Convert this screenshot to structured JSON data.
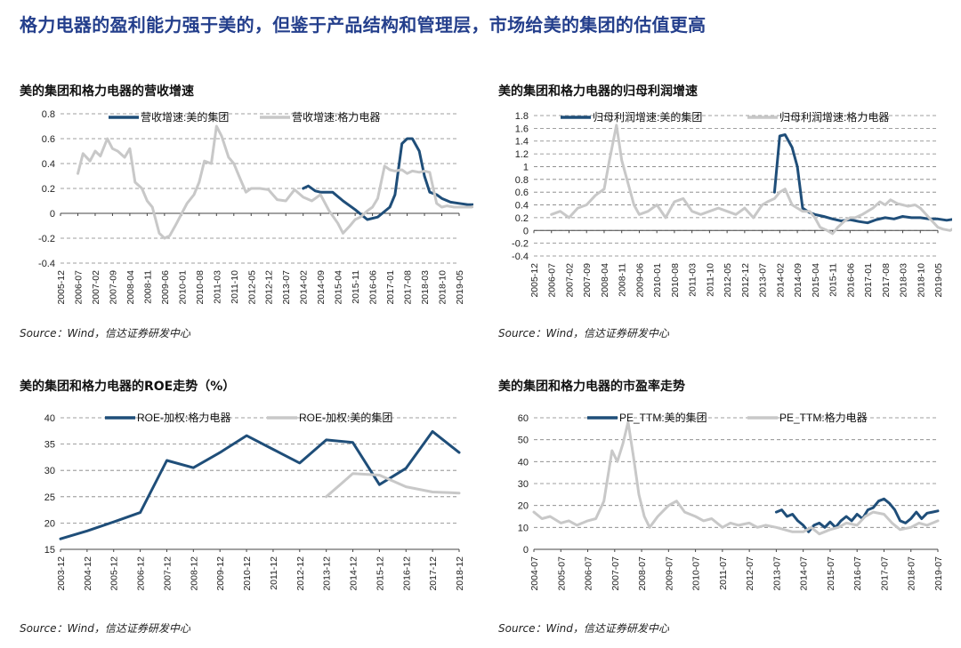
{
  "headline": "格力电器的盈利能力强于美的，但鉴于产品结构和管理层，市场给美的集团的估值更高",
  "colors": {
    "dark": "#1f4e79",
    "light": "#c8c8c8",
    "title": "#243f8c",
    "grid": "#808080"
  },
  "charts": [
    {
      "title": "美的集团和格力电器的营收增速",
      "source": "Source：Wind，信达证券研发中心",
      "chart_data": {
        "type": "line",
        "ylim": [
          -0.4,
          0.8
        ],
        "yticks": [
          -0.4,
          -0.2,
          0,
          0.2,
          0.4,
          0.6,
          0.8
        ],
        "xticks": [
          "2005-12",
          "2006-07",
          "2007-02",
          "2007-09",
          "2008-04",
          "2008-11",
          "2009-06",
          "2010-01",
          "2010-08",
          "2011-03",
          "2011-10",
          "2012-05",
          "2012-12",
          "2013-07",
          "2014-02",
          "2014-09",
          "2015-04",
          "2015-11",
          "2016-06",
          "2017-01",
          "2017-08",
          "2018-03",
          "2018-10",
          "2019-05"
        ],
        "series": [
          {
            "name": "营收增速:美的集团",
            "color": "dark",
            "x": [
              14.0,
              14.3,
              14.7,
              15.0,
              15.7,
              16.3,
              17.0,
              17.7,
              18.3,
              19.0,
              19.3,
              19.7,
              20.0,
              20.3,
              20.7,
              21.0,
              21.3,
              21.7,
              22.0,
              22.5,
              23.0,
              23.5,
              24.0
            ],
            "y": [
              0.2,
              0.22,
              0.18,
              0.17,
              0.17,
              0.1,
              0.03,
              -0.05,
              -0.03,
              0.05,
              0.15,
              0.56,
              0.6,
              0.6,
              0.5,
              0.3,
              0.17,
              0.15,
              0.12,
              0.09,
              0.08,
              0.07,
              0.07
            ]
          },
          {
            "name": "营收增速:格力电器",
            "color": "light",
            "x": [
              1.0,
              1.3,
              1.7,
              2.0,
              2.3,
              2.7,
              3.0,
              3.3,
              3.7,
              4.0,
              4.3,
              4.7,
              5.0,
              5.3,
              5.7,
              6.0,
              6.3,
              6.7,
              7.0,
              7.3,
              7.7,
              8.0,
              8.3,
              8.7,
              9.0,
              9.3,
              9.7,
              10.0,
              10.3,
              10.7,
              11.0,
              11.5,
              12.0,
              12.5,
              13.0,
              13.5,
              14.0,
              14.5,
              15.0,
              15.5,
              16.0,
              16.3,
              16.7,
              17.0,
              17.3,
              17.7,
              18.0,
              18.3,
              18.7,
              19.0,
              19.3,
              19.7,
              20.0,
              20.3,
              20.7,
              21.0,
              21.3,
              21.7,
              22.0,
              22.3,
              22.7,
              23.0,
              23.3,
              23.7,
              24.0
            ],
            "y": [
              0.32,
              0.48,
              0.42,
              0.5,
              0.46,
              0.6,
              0.52,
              0.5,
              0.45,
              0.52,
              0.25,
              0.2,
              0.1,
              0.05,
              -0.16,
              -0.2,
              -0.18,
              -0.08,
              0.0,
              0.08,
              0.15,
              0.25,
              0.42,
              0.4,
              0.7,
              0.62,
              0.45,
              0.4,
              0.3,
              0.17,
              0.2,
              0.2,
              0.19,
              0.11,
              0.1,
              0.19,
              0.13,
              0.1,
              0.15,
              0.02,
              -0.08,
              -0.16,
              -0.1,
              -0.05,
              -0.03,
              0.02,
              0.05,
              0.12,
              0.38,
              0.35,
              0.34,
              0.35,
              0.32,
              0.34,
              0.33,
              0.34,
              0.33,
              0.08,
              0.05,
              0.06,
              0.05,
              0.05,
              0.05,
              0.05,
              0.06
            ]
          }
        ]
      }
    },
    {
      "title": "美的集团和格力电器的归母利润增速",
      "source": "Source：Wind，信达证券研发中心",
      "chart_data": {
        "type": "line",
        "ylim": [
          -0.4,
          1.8
        ],
        "yticks": [
          -0.4,
          -0.2,
          0,
          0.2,
          0.4,
          0.6,
          0.8,
          1,
          1.2,
          1.4,
          1.6,
          1.8
        ],
        "xticks": [
          "2005-12",
          "2006-07",
          "2007-02",
          "2007-09",
          "2008-04",
          "2008-11",
          "2009-06",
          "2010-01",
          "2010-08",
          "2011-03",
          "2011-10",
          "2012-05",
          "2012-12",
          "2013-07",
          "2014-02",
          "2014-09",
          "2015-04",
          "2015-11",
          "2016-06",
          "2017-01",
          "2017-08",
          "2018-03",
          "2018-10",
          "2019-05"
        ],
        "series": [
          {
            "name": "归母利润增速:美的集团",
            "color": "dark",
            "x": [
              13.7,
              14.0,
              14.3,
              14.7,
              15.0,
              15.3,
              15.7,
              16.0,
              16.5,
              17.0,
              17.5,
              18.0,
              18.5,
              19.0,
              19.5,
              20.0,
              20.5,
              21.0,
              21.5,
              22.0,
              22.5,
              23.0,
              23.5,
              24.0
            ],
            "y": [
              0.6,
              1.48,
              1.5,
              1.3,
              1.0,
              0.35,
              0.28,
              0.25,
              0.22,
              0.18,
              0.15,
              0.17,
              0.14,
              0.12,
              0.17,
              0.2,
              0.18,
              0.22,
              0.2,
              0.2,
              0.18,
              0.18,
              0.16,
              0.18
            ]
          },
          {
            "name": "归母利润增速:格力电器",
            "color": "light",
            "x": [
              1.0,
              1.5,
              2.0,
              2.5,
              3.0,
              3.5,
              4.0,
              4.3,
              4.7,
              5.0,
              5.3,
              5.7,
              6.0,
              6.5,
              7.0,
              7.5,
              8.0,
              8.5,
              9.0,
              9.5,
              10.0,
              10.5,
              11.0,
              11.5,
              12.0,
              12.5,
              13.0,
              13.3,
              13.7,
              14.0,
              14.3,
              14.7,
              15.0,
              15.3,
              15.7,
              16.0,
              16.3,
              16.7,
              17.0,
              17.3,
              17.7,
              18.0,
              18.3,
              18.7,
              19.0,
              19.3,
              19.7,
              20.0,
              20.3,
              20.7,
              21.0,
              21.3,
              21.7,
              22.0,
              22.5,
              23.0,
              23.3,
              23.7,
              24.0
            ],
            "y": [
              0.25,
              0.3,
              0.2,
              0.35,
              0.4,
              0.55,
              0.65,
              1.1,
              1.65,
              1.1,
              0.8,
              0.4,
              0.25,
              0.3,
              0.4,
              0.2,
              0.45,
              0.5,
              0.3,
              0.25,
              0.3,
              0.35,
              0.3,
              0.25,
              0.35,
              0.2,
              0.4,
              0.45,
              0.5,
              0.6,
              0.65,
              0.4,
              0.35,
              0.3,
              0.3,
              0.2,
              0.05,
              0.0,
              -0.05,
              0.05,
              0.15,
              0.2,
              0.2,
              0.25,
              0.3,
              0.35,
              0.45,
              0.4,
              0.48,
              0.42,
              0.4,
              0.38,
              0.4,
              0.35,
              0.2,
              0.05,
              0.02,
              0.0,
              0.05
            ]
          }
        ]
      }
    },
    {
      "title": "美的集团和格力电器的ROE走势（%）",
      "source": "Source：Wind，信达证券研发中心",
      "chart_data": {
        "type": "line",
        "ylim": [
          15,
          40
        ],
        "yticks": [
          15,
          20,
          25,
          30,
          35,
          40
        ],
        "xticks": [
          "2003-12",
          "2004-12",
          "2005-12",
          "2006-12",
          "2007-12",
          "2008-12",
          "2009-12",
          "2010-12",
          "2011-12",
          "2012-12",
          "2013-12",
          "2014-12",
          "2015-12",
          "2016-12",
          "2017-12",
          "2018-12"
        ],
        "series": [
          {
            "name": "ROE-加权:格力电器",
            "color": "dark",
            "x": [
              0,
              1,
              2,
              3,
              4,
              5,
              6,
              7,
              8,
              9,
              10,
              11,
              12,
              13,
              14,
              15
            ],
            "y": [
              17.0,
              18.5,
              20.2,
              22.0,
              31.9,
              30.5,
              33.4,
              36.6,
              34.0,
              31.4,
              35.8,
              35.3,
              27.3,
              30.4,
              37.4,
              33.4
            ]
          },
          {
            "name": "ROE-加权:美的集团",
            "color": "light",
            "x": [
              10,
              11,
              12,
              13,
              14,
              15
            ],
            "y": [
              25.0,
              29.4,
              29.1,
              26.9,
              25.9,
              25.7
            ]
          }
        ]
      }
    },
    {
      "title": "美的集团和格力电器的市盈率走势",
      "source": "Source：Wind，信达证券研发中心",
      "chart_data": {
        "type": "line",
        "ylim": [
          0,
          60
        ],
        "yticks": [
          0,
          10,
          20,
          30,
          40,
          50,
          60
        ],
        "xticks": [
          "2004-07",
          "2005-07",
          "2006-07",
          "2007-07",
          "2008-07",
          "2009-07",
          "2010-07",
          "2011-07",
          "2012-07",
          "2013-07",
          "2014-07",
          "2015-07",
          "2016-07",
          "2017-07",
          "2018-07",
          "2019-07"
        ],
        "series": [
          {
            "name": "PE_TTM:美的集团",
            "color": "dark",
            "x": [
              9.0,
              9.2,
              9.4,
              9.6,
              9.8,
              10.0,
              10.2,
              10.4,
              10.6,
              10.8,
              11.0,
              11.2,
              11.4,
              11.6,
              11.8,
              12.0,
              12.2,
              12.4,
              12.6,
              12.8,
              13.0,
              13.2,
              13.4,
              13.6,
              13.8,
              14.0,
              14.2,
              14.4,
              14.6,
              14.8,
              15.0
            ],
            "y": [
              17.0,
              18.0,
              15.0,
              16.0,
              13.0,
              11.0,
              8.0,
              11.0,
              12.0,
              10.0,
              12.5,
              10.0,
              13.0,
              15.0,
              13.0,
              16.0,
              14.0,
              18.0,
              19.0,
              22.0,
              23.0,
              21.0,
              18.0,
              13.0,
              12.0,
              14.0,
              17.0,
              14.0,
              16.5,
              17.0,
              17.5
            ]
          },
          {
            "name": "PE_TTM:格力电器",
            "color": "light",
            "x": [
              0.0,
              0.3,
              0.6,
              1.0,
              1.3,
              1.6,
              2.0,
              2.3,
              2.6,
              2.9,
              3.1,
              3.3,
              3.5,
              3.7,
              3.9,
              4.1,
              4.3,
              4.6,
              5.0,
              5.3,
              5.6,
              6.0,
              6.3,
              6.6,
              7.0,
              7.3,
              7.6,
              8.0,
              8.3,
              8.6,
              9.0,
              9.3,
              9.6,
              10.0,
              10.3,
              10.6,
              11.0,
              11.3,
              11.6,
              12.0,
              12.3,
              12.6,
              13.0,
              13.3,
              13.6,
              14.0,
              14.3,
              14.6,
              15.0
            ],
            "y": [
              17.0,
              14.0,
              15.0,
              12.0,
              13.0,
              11.0,
              13.0,
              14.0,
              22.0,
              45.0,
              40.0,
              48.0,
              58.0,
              42.0,
              25.0,
              15.0,
              10.0,
              15.0,
              20.0,
              22.0,
              17.0,
              15.0,
              13.0,
              14.0,
              10.0,
              12.0,
              11.0,
              12.0,
              10.0,
              11.0,
              10.0,
              9.0,
              8.0,
              8.0,
              10.0,
              7.0,
              9.0,
              10.0,
              12.0,
              11.0,
              15.0,
              17.0,
              16.0,
              12.0,
              9.0,
              10.0,
              12.0,
              11.0,
              13.0
            ]
          }
        ]
      }
    }
  ]
}
